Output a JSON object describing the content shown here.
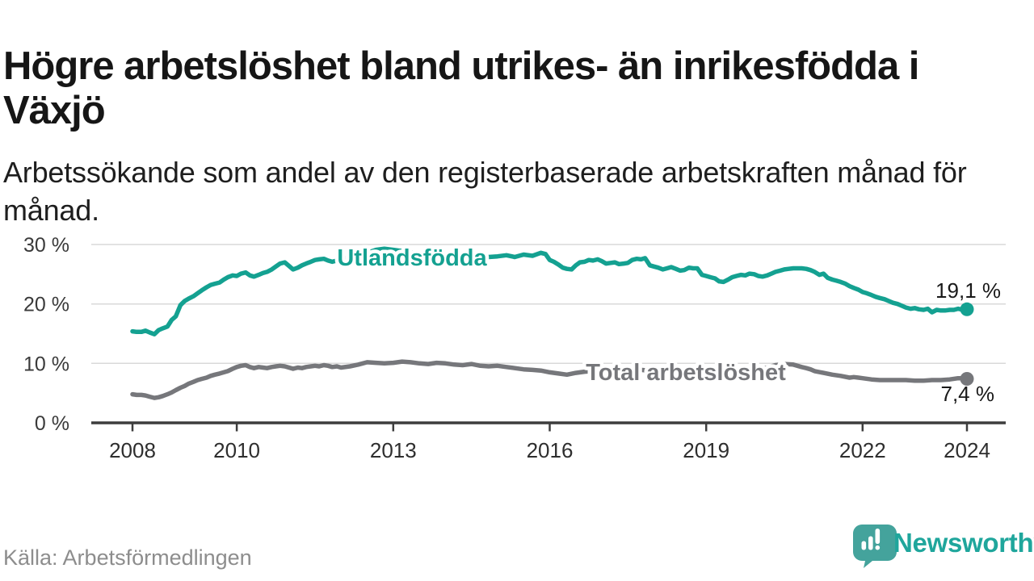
{
  "header": {
    "title": "Högre arbetslöshet bland utrikes- än inrikesfödda i Växjö",
    "subtitle": "Arbetssökande som andel av den registerbaserade arbetskraften månad för månad."
  },
  "footer": {
    "source": "Källa: Arbetsförmedlingen",
    "brand": "Newsworthy",
    "brand_icon": "newsworthy-speech-bubble-bar-chart-icon"
  },
  "colors": {
    "teal_line": "#14a191",
    "gray_line": "#76777b",
    "grid": "#d9d9d9",
    "axis": "#3d3d3d",
    "logo_bubble": "#44a39c",
    "logo_text": "#1fa69c",
    "end_label_text": "#191919"
  },
  "chart_data": {
    "type": "line",
    "title": "Högre arbetslöshet bland utrikes- än inrikesfödda i Växjö",
    "xlabel": "",
    "ylabel": "",
    "grid": "horizontal",
    "legend_position": "inline-on-line",
    "x_axis": {
      "ticks": [
        2008,
        2010,
        2013,
        2016,
        2019,
        2022,
        2024
      ],
      "range": [
        2007.2,
        2024.75
      ]
    },
    "y_axis": {
      "ticks": [
        0,
        10,
        20,
        30
      ],
      "tick_labels": [
        "0 %",
        "10 %",
        "20 %",
        "30 %"
      ],
      "range": [
        0,
        30
      ],
      "unit": "%"
    },
    "series": [
      {
        "name": "Utlandsfödda",
        "color": "#14a191",
        "end_value": 19.1,
        "end_label": "19,1 %",
        "points": [
          [
            2008.0,
            15.4
          ],
          [
            2008.08,
            15.3
          ],
          [
            2008.17,
            15.3
          ],
          [
            2008.25,
            15.5
          ],
          [
            2008.33,
            15.2
          ],
          [
            2008.42,
            14.9
          ],
          [
            2008.5,
            15.6
          ],
          [
            2008.58,
            15.9
          ],
          [
            2008.67,
            16.2
          ],
          [
            2008.75,
            17.3
          ],
          [
            2008.83,
            17.9
          ],
          [
            2008.92,
            19.8
          ],
          [
            2009.0,
            20.5
          ],
          [
            2009.08,
            20.9
          ],
          [
            2009.17,
            21.3
          ],
          [
            2009.25,
            21.8
          ],
          [
            2009.33,
            22.3
          ],
          [
            2009.42,
            22.8
          ],
          [
            2009.5,
            23.2
          ],
          [
            2009.58,
            23.4
          ],
          [
            2009.67,
            23.6
          ],
          [
            2009.75,
            24.1
          ],
          [
            2009.83,
            24.5
          ],
          [
            2009.92,
            24.8
          ],
          [
            2010.0,
            24.7
          ],
          [
            2010.08,
            25.1
          ],
          [
            2010.17,
            25.3
          ],
          [
            2010.25,
            24.8
          ],
          [
            2010.33,
            24.6
          ],
          [
            2010.42,
            24.9
          ],
          [
            2010.5,
            25.2
          ],
          [
            2010.58,
            25.4
          ],
          [
            2010.67,
            25.8
          ],
          [
            2010.75,
            26.3
          ],
          [
            2010.83,
            26.8
          ],
          [
            2010.92,
            27.0
          ],
          [
            2011.0,
            26.4
          ],
          [
            2011.08,
            25.8
          ],
          [
            2011.17,
            26.1
          ],
          [
            2011.25,
            26.5
          ],
          [
            2011.33,
            26.8
          ],
          [
            2011.42,
            27.1
          ],
          [
            2011.5,
            27.4
          ],
          [
            2011.58,
            27.5
          ],
          [
            2011.67,
            27.6
          ],
          [
            2011.75,
            27.3
          ],
          [
            2011.83,
            27.1
          ],
          [
            2011.92,
            27.3
          ],
          [
            2012.0,
            27.5
          ],
          [
            2012.17,
            27.9
          ],
          [
            2012.33,
            28.2
          ],
          [
            2012.5,
            28.6
          ],
          [
            2012.67,
            29.1
          ],
          [
            2012.83,
            29.3
          ],
          [
            2013.0,
            29.1
          ],
          [
            2013.17,
            28.9
          ],
          [
            2013.33,
            28.7
          ],
          [
            2013.5,
            28.6
          ],
          [
            2013.67,
            28.5
          ],
          [
            2013.83,
            28.5
          ],
          [
            2014.0,
            28.4
          ],
          [
            2014.17,
            28.3
          ],
          [
            2014.33,
            28.2
          ],
          [
            2014.5,
            28.1
          ],
          [
            2014.67,
            28.0
          ],
          [
            2014.83,
            27.9
          ],
          [
            2015.0,
            28.0
          ],
          [
            2015.17,
            28.2
          ],
          [
            2015.33,
            27.9
          ],
          [
            2015.5,
            28.3
          ],
          [
            2015.67,
            28.1
          ],
          [
            2015.83,
            28.6
          ],
          [
            2015.92,
            28.4
          ],
          [
            2016.0,
            27.4
          ],
          [
            2016.08,
            27.1
          ],
          [
            2016.17,
            26.6
          ],
          [
            2016.25,
            26.1
          ],
          [
            2016.33,
            25.9
          ],
          [
            2016.42,
            25.8
          ],
          [
            2016.5,
            26.5
          ],
          [
            2016.58,
            27.0
          ],
          [
            2016.67,
            27.1
          ],
          [
            2016.75,
            27.4
          ],
          [
            2016.83,
            27.3
          ],
          [
            2016.92,
            27.5
          ],
          [
            2017.0,
            27.2
          ],
          [
            2017.08,
            26.8
          ],
          [
            2017.17,
            26.9
          ],
          [
            2017.25,
            27.0
          ],
          [
            2017.33,
            26.7
          ],
          [
            2017.42,
            26.8
          ],
          [
            2017.5,
            26.9
          ],
          [
            2017.58,
            27.4
          ],
          [
            2017.67,
            27.6
          ],
          [
            2017.75,
            27.5
          ],
          [
            2017.83,
            27.7
          ],
          [
            2017.92,
            26.5
          ],
          [
            2018.0,
            26.3
          ],
          [
            2018.08,
            26.1
          ],
          [
            2018.17,
            25.8
          ],
          [
            2018.25,
            26.0
          ],
          [
            2018.33,
            26.2
          ],
          [
            2018.42,
            25.9
          ],
          [
            2018.5,
            25.6
          ],
          [
            2018.58,
            25.7
          ],
          [
            2018.67,
            26.1
          ],
          [
            2018.75,
            26.0
          ],
          [
            2018.83,
            26.0
          ],
          [
            2018.92,
            24.9
          ],
          [
            2019.0,
            24.7
          ],
          [
            2019.08,
            24.5
          ],
          [
            2019.17,
            24.3
          ],
          [
            2019.25,
            23.8
          ],
          [
            2019.33,
            23.7
          ],
          [
            2019.42,
            24.1
          ],
          [
            2019.5,
            24.5
          ],
          [
            2019.58,
            24.7
          ],
          [
            2019.67,
            24.9
          ],
          [
            2019.75,
            24.8
          ],
          [
            2019.83,
            25.1
          ],
          [
            2019.92,
            25.0
          ],
          [
            2020.0,
            24.7
          ],
          [
            2020.08,
            24.6
          ],
          [
            2020.17,
            24.8
          ],
          [
            2020.25,
            25.1
          ],
          [
            2020.33,
            25.4
          ],
          [
            2020.42,
            25.6
          ],
          [
            2020.5,
            25.8
          ],
          [
            2020.58,
            25.9
          ],
          [
            2020.67,
            26.0
          ],
          [
            2020.75,
            26.0
          ],
          [
            2020.83,
            26.0
          ],
          [
            2020.92,
            25.9
          ],
          [
            2021.0,
            25.7
          ],
          [
            2021.08,
            25.4
          ],
          [
            2021.17,
            24.9
          ],
          [
            2021.25,
            25.1
          ],
          [
            2021.33,
            24.4
          ],
          [
            2021.42,
            24.1
          ],
          [
            2021.5,
            23.9
          ],
          [
            2021.58,
            23.7
          ],
          [
            2021.67,
            23.4
          ],
          [
            2021.75,
            23.0
          ],
          [
            2021.83,
            22.7
          ],
          [
            2021.92,
            22.4
          ],
          [
            2022.0,
            22.0
          ],
          [
            2022.08,
            21.8
          ],
          [
            2022.17,
            21.5
          ],
          [
            2022.25,
            21.2
          ],
          [
            2022.33,
            21.0
          ],
          [
            2022.42,
            20.8
          ],
          [
            2022.5,
            20.5
          ],
          [
            2022.58,
            20.2
          ],
          [
            2022.67,
            20.0
          ],
          [
            2022.75,
            19.7
          ],
          [
            2022.83,
            19.4
          ],
          [
            2022.92,
            19.2
          ],
          [
            2023.0,
            19.3
          ],
          [
            2023.08,
            19.1
          ],
          [
            2023.17,
            19.0
          ],
          [
            2023.25,
            19.2
          ],
          [
            2023.33,
            18.6
          ],
          [
            2023.42,
            19.0
          ],
          [
            2023.5,
            18.9
          ],
          [
            2023.58,
            18.9
          ],
          [
            2023.67,
            19.0
          ],
          [
            2023.75,
            19.0
          ],
          [
            2023.83,
            19.2
          ],
          [
            2023.92,
            19.0
          ],
          [
            2024.0,
            19.1
          ]
        ]
      },
      {
        "name": "Total arbetslöshet",
        "color": "#76777b",
        "end_value": 7.4,
        "end_label": "7,4 %",
        "points": [
          [
            2008.0,
            4.8
          ],
          [
            2008.08,
            4.7
          ],
          [
            2008.17,
            4.7
          ],
          [
            2008.25,
            4.6
          ],
          [
            2008.33,
            4.4
          ],
          [
            2008.42,
            4.2
          ],
          [
            2008.5,
            4.3
          ],
          [
            2008.58,
            4.5
          ],
          [
            2008.67,
            4.8
          ],
          [
            2008.75,
            5.1
          ],
          [
            2008.83,
            5.5
          ],
          [
            2008.92,
            5.9
          ],
          [
            2009.0,
            6.2
          ],
          [
            2009.08,
            6.6
          ],
          [
            2009.17,
            6.9
          ],
          [
            2009.25,
            7.2
          ],
          [
            2009.33,
            7.4
          ],
          [
            2009.42,
            7.6
          ],
          [
            2009.5,
            7.9
          ],
          [
            2009.58,
            8.1
          ],
          [
            2009.67,
            8.3
          ],
          [
            2009.75,
            8.5
          ],
          [
            2009.83,
            8.7
          ],
          [
            2009.92,
            9.1
          ],
          [
            2010.0,
            9.4
          ],
          [
            2010.08,
            9.6
          ],
          [
            2010.17,
            9.7
          ],
          [
            2010.25,
            9.4
          ],
          [
            2010.33,
            9.2
          ],
          [
            2010.42,
            9.4
          ],
          [
            2010.5,
            9.3
          ],
          [
            2010.58,
            9.2
          ],
          [
            2010.67,
            9.4
          ],
          [
            2010.75,
            9.5
          ],
          [
            2010.83,
            9.6
          ],
          [
            2010.92,
            9.5
          ],
          [
            2011.0,
            9.3
          ],
          [
            2011.08,
            9.1
          ],
          [
            2011.17,
            9.3
          ],
          [
            2011.25,
            9.2
          ],
          [
            2011.33,
            9.4
          ],
          [
            2011.42,
            9.5
          ],
          [
            2011.5,
            9.6
          ],
          [
            2011.58,
            9.5
          ],
          [
            2011.67,
            9.7
          ],
          [
            2011.75,
            9.6
          ],
          [
            2011.83,
            9.4
          ],
          [
            2011.92,
            9.5
          ],
          [
            2012.0,
            9.3
          ],
          [
            2012.17,
            9.5
          ],
          [
            2012.33,
            9.8
          ],
          [
            2012.5,
            10.2
          ],
          [
            2012.67,
            10.1
          ],
          [
            2012.83,
            10.0
          ],
          [
            2013.0,
            10.1
          ],
          [
            2013.17,
            10.3
          ],
          [
            2013.33,
            10.2
          ],
          [
            2013.5,
            10.0
          ],
          [
            2013.67,
            9.9
          ],
          [
            2013.83,
            10.1
          ],
          [
            2014.0,
            10.0
          ],
          [
            2014.17,
            9.8
          ],
          [
            2014.33,
            9.7
          ],
          [
            2014.5,
            9.9
          ],
          [
            2014.67,
            9.6
          ],
          [
            2014.83,
            9.5
          ],
          [
            2015.0,
            9.6
          ],
          [
            2015.17,
            9.4
          ],
          [
            2015.33,
            9.2
          ],
          [
            2015.5,
            9.0
          ],
          [
            2015.67,
            8.9
          ],
          [
            2015.83,
            8.8
          ],
          [
            2016.0,
            8.5
          ],
          [
            2016.17,
            8.3
          ],
          [
            2016.33,
            8.1
          ],
          [
            2016.5,
            8.4
          ],
          [
            2016.67,
            8.6
          ],
          [
            2016.83,
            8.7
          ],
          [
            2017.0,
            8.8
          ],
          [
            2017.25,
            8.8
          ],
          [
            2017.5,
            8.9
          ],
          [
            2017.75,
            8.9
          ],
          [
            2018.0,
            8.7
          ],
          [
            2018.25,
            8.6
          ],
          [
            2018.5,
            8.5
          ],
          [
            2018.75,
            8.4
          ],
          [
            2019.0,
            8.3
          ],
          [
            2019.25,
            8.4
          ],
          [
            2019.5,
            8.5
          ],
          [
            2019.75,
            8.7
          ],
          [
            2020.0,
            8.9
          ],
          [
            2020.17,
            9.3
          ],
          [
            2020.33,
            9.7
          ],
          [
            2020.5,
            9.9
          ],
          [
            2020.67,
            9.8
          ],
          [
            2020.83,
            9.4
          ],
          [
            2020.92,
            9.2
          ],
          [
            2021.0,
            9.0
          ],
          [
            2021.08,
            8.7
          ],
          [
            2021.25,
            8.4
          ],
          [
            2021.42,
            8.1
          ],
          [
            2021.58,
            7.9
          ],
          [
            2021.75,
            7.6
          ],
          [
            2021.83,
            7.7
          ],
          [
            2021.92,
            7.6
          ],
          [
            2022.0,
            7.5
          ],
          [
            2022.17,
            7.3
          ],
          [
            2022.33,
            7.2
          ],
          [
            2022.5,
            7.2
          ],
          [
            2022.67,
            7.2
          ],
          [
            2022.83,
            7.2
          ],
          [
            2023.0,
            7.1
          ],
          [
            2023.17,
            7.1
          ],
          [
            2023.33,
            7.2
          ],
          [
            2023.5,
            7.2
          ],
          [
            2023.67,
            7.3
          ],
          [
            2023.83,
            7.5
          ],
          [
            2023.92,
            7.5
          ],
          [
            2024.0,
            7.4
          ]
        ]
      }
    ]
  }
}
